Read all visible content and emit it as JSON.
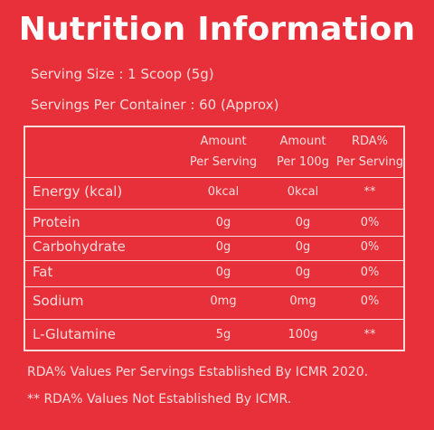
{
  "title": "Nutrition Information",
  "serving_size": "Serving Size : 1 Scoop (5g)",
  "servings_per_container": "Servings Per Container : 60 (Approx)",
  "table": {
    "headers": [
      {
        "line1": "Amount",
        "line2": "Per Serving"
      },
      {
        "line1": "Amount",
        "line2": "Per 100g"
      },
      {
        "line1": "RDA%",
        "line2": "Per Serving"
      }
    ],
    "rows": [
      {
        "nutrient": "Energy (kcal)",
        "per_serving": "0kcal",
        "per_100g": "0kcal",
        "rda": "**"
      },
      {
        "nutrient": "Protein",
        "per_serving": "0g",
        "per_100g": "0g",
        "rda": "0%"
      },
      {
        "nutrient": "Carbohydrate",
        "per_serving": "0g",
        "per_100g": "0g",
        "rda": "0%"
      },
      {
        "nutrient": "Fat",
        "per_serving": "0g",
        "per_100g": "0g",
        "rda": "0%"
      },
      {
        "nutrient": "Sodium",
        "per_serving": "0mg",
        "per_100g": "0mg",
        "rda": "0%"
      },
      {
        "nutrient": "L-Glutamine",
        "per_serving": "5g",
        "per_100g": "100g",
        "rda": "**"
      }
    ]
  },
  "notes": [
    "RDA%  Values Per Servings Established By ICMR 2020.",
    "** RDA%  Values Not Established By ICMR."
  ],
  "colors": {
    "background": "#e8303a",
    "text": "#f7dcdc",
    "title": "#ffffff"
  }
}
